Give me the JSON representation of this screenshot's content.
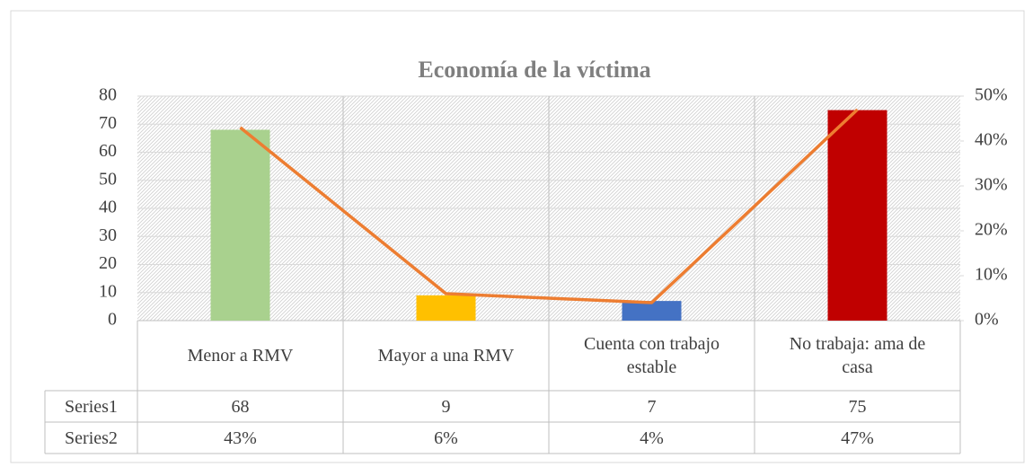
{
  "chart_data": {
    "type": "bar-line",
    "title": "Economía de la víctima",
    "categories": [
      "Menor a RMV",
      "Mayor a una RMV",
      "Cuenta con trabajo estable",
      "No trabaja: ama de casa"
    ],
    "series": [
      {
        "name": "Series1",
        "values": [
          68,
          9,
          7,
          75
        ],
        "colors": [
          "#a9d18e",
          "#ffc000",
          "#4472c4",
          "#c00000"
        ]
      },
      {
        "name": "Series2",
        "axis": "y2",
        "color": "#ed7d31",
        "values": [
          43,
          6,
          4,
          47
        ],
        "value_labels": [
          "43%",
          "6%",
          "4%",
          "47%"
        ]
      }
    ],
    "ylim": [
      0,
      80
    ],
    "yticks": [
      0,
      10,
      20,
      30,
      40,
      50,
      60,
      70,
      80
    ],
    "y2lim": [
      0,
      50
    ],
    "y2ticks": [
      {
        "value": 0,
        "label": "0%"
      },
      {
        "value": 10,
        "label": "10%"
      },
      {
        "value": 20,
        "label": "20%"
      },
      {
        "value": 30,
        "label": "30%"
      },
      {
        "value": 40,
        "label": "40%"
      },
      {
        "value": 50,
        "label": "50%"
      }
    ],
    "grid": true
  }
}
